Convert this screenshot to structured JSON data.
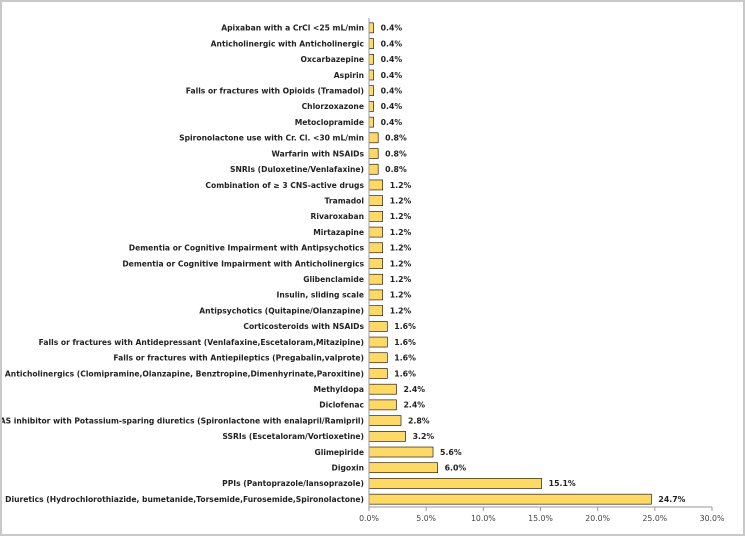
{
  "chart_data": {
    "type": "bar",
    "orientation": "horizontal",
    "title": "",
    "xlabel": "",
    "ylabel": "",
    "xlim": [
      0,
      30
    ],
    "x_ticks": [
      "0.0%",
      "5.0%",
      "10.0%",
      "15.0%",
      "20.0%",
      "25.0%",
      "30.0%"
    ],
    "grid": false,
    "legend": "none",
    "bar_color": "#ffd966",
    "bar_edge_color": "#000000",
    "categories": [
      "Apixaban with a CrCl <25 mL/min",
      "Anticholinergic with Anticholinergic",
      "Oxcarbazepine",
      "Aspirin",
      "Falls or fractures with Opioids (Tramadol)",
      "Chlorzoxazone",
      "Metoclopramide",
      "Spironolactone use with Cr. Cl. <30 mL/min",
      "Warfarin with NSAIDs",
      "SNRIs (Duloxetine/Venlafaxine)",
      "Combination of ≥ 3 CNS-active drugs",
      "Tramadol",
      "Rivaroxaban",
      "Mirtazapine",
      "Dementia or Cognitive Impairment with Antipsychotics",
      "Dementia or Cognitive Impairment with Anticholinergics",
      "Glibenclamide",
      "Insulin, sliding scale",
      "Antipsychotics (Quitapine/Olanzapine)",
      "Corticosteroids with NSAIDs",
      "Falls or fractures with Antidepressant (Venlafaxine,Escetaloram,Mitazipine)",
      "Falls or fractures with Antiepileptics  (Pregabalin,valprote)",
      "Anticholinergics (Clomipramine,Olanzapine, Benztropine,Dimenhyrinate,Paroxitine)",
      "Methyldopa",
      "Diclofenac",
      "RAS inhibitor with Potassium-sparing diuretics (Spironlactone with enalapril/Ramipril)",
      "SSRIs (Escetaloram/Vortioxetine)",
      "Glimepiride",
      "Digoxin",
      "PPIs (Pantoprazole/lansoprazole)",
      "Diuretics (Hydrochlorothiazide, bumetanide,Torsemide,Furosemide,Spironolactone)"
    ],
    "values": [
      0.4,
      0.4,
      0.4,
      0.4,
      0.4,
      0.4,
      0.4,
      0.8,
      0.8,
      0.8,
      1.2,
      1.2,
      1.2,
      1.2,
      1.2,
      1.2,
      1.2,
      1.2,
      1.2,
      1.6,
      1.6,
      1.6,
      1.6,
      2.4,
      2.4,
      2.8,
      3.2,
      5.6,
      6.0,
      15.1,
      24.7
    ],
    "data_labels": [
      "0.4%",
      "0.4%",
      "0.4%",
      "0.4%",
      "0.4%",
      "0.4%",
      "0.4%",
      "0.8%",
      "0.8%",
      "0.8%",
      "1.2%",
      "1.2%",
      "1.2%",
      "1.2%",
      "1.2%",
      "1.2%",
      "1.2%",
      "1.2%",
      "1.2%",
      "1.6%",
      "1.6%",
      "1.6%",
      "1.6%",
      "2.4%",
      "2.4%",
      "2.8%",
      "3.2%",
      "5.6%",
      "6.0%",
      "15.1%",
      "24.7%"
    ]
  }
}
